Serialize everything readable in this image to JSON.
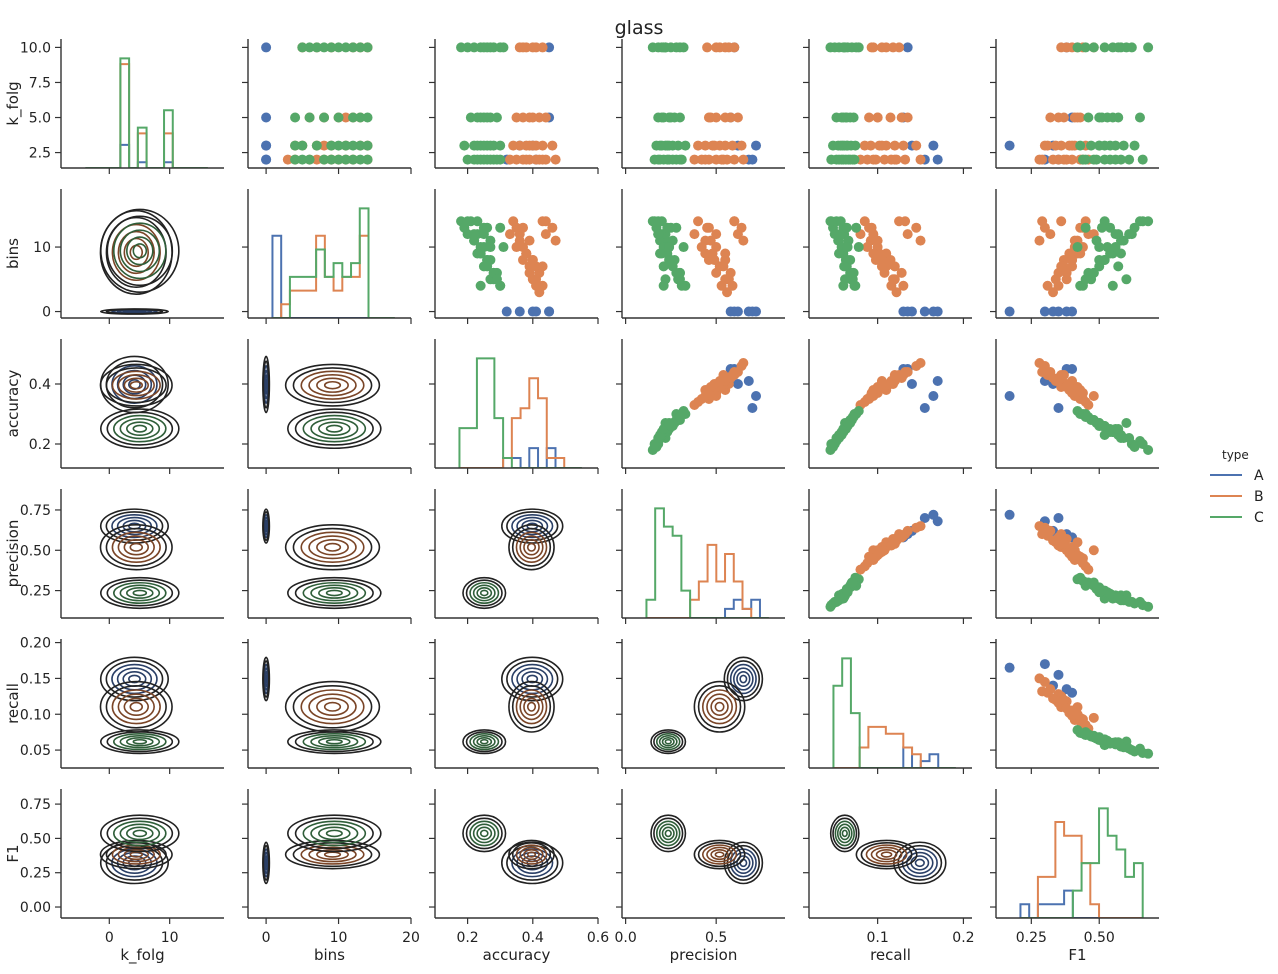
{
  "chart_data": {
    "type": "pairplot",
    "title": "glass",
    "variables": [
      "k_folg",
      "bins",
      "accuracy",
      "precision",
      "recall",
      "F1"
    ],
    "axis_labels": [
      "k_folg",
      "bins",
      "accuracy",
      "precision",
      "recall",
      "F1"
    ],
    "legend": {
      "title": "type",
      "position": "right",
      "entries": [
        {
          "label": "A",
          "color": "#4c72b0"
        },
        {
          "label": "B",
          "color": "#dd8452"
        },
        {
          "label": "C",
          "color": "#55a868"
        }
      ]
    },
    "axes": [
      {
        "name": "k_folg",
        "xlim": [
          -8,
          19
        ],
        "ylim": [
          1.4,
          10.6
        ],
        "xticks": [
          0,
          10
        ],
        "xtick_labels": [
          "0",
          "10"
        ],
        "yticks": [
          2.5,
          5.0,
          7.5,
          10.0
        ],
        "ytick_labels": [
          "2.5",
          "5.0",
          "7.5",
          "10.0"
        ]
      },
      {
        "name": "bins",
        "xlim": [
          -2.5,
          20
        ],
        "ylim": [
          -1.0,
          19.0
        ],
        "xticks": [
          0,
          10,
          20
        ],
        "xtick_labels": [
          "0",
          "10",
          "20"
        ],
        "yticks": [
          0,
          10
        ],
        "ytick_labels": [
          "0",
          "10"
        ]
      },
      {
        "name": "accuracy",
        "xlim": [
          0.1,
          0.6
        ],
        "ylim": [
          0.12,
          0.55
        ],
        "xticks": [
          0.2,
          0.4,
          0.6
        ],
        "xtick_labels": [
          "0.2",
          "0.4",
          "0.6"
        ],
        "yticks": [
          0.2,
          0.4
        ],
        "ytick_labels": [
          "0.2",
          "0.4"
        ]
      },
      {
        "name": "precision",
        "xlim": [
          -0.02,
          0.88
        ],
        "ylim": [
          0.08,
          0.88
        ],
        "xticks": [
          0.0,
          0.5
        ],
        "xtick_labels": [
          "0.0",
          "0.5"
        ],
        "yticks": [
          0.25,
          0.5,
          0.75
        ],
        "ytick_labels": [
          "0.25",
          "0.50",
          "0.75"
        ]
      },
      {
        "name": "recall",
        "xlim": [
          0.02,
          0.21
        ],
        "ylim": [
          0.025,
          0.205
        ],
        "xticks": [
          0.1,
          0.2
        ],
        "xtick_labels": [
          "0.1",
          "0.2"
        ],
        "yticks": [
          0.05,
          0.1,
          0.15,
          0.2
        ],
        "ytick_labels": [
          "0.05",
          "0.10",
          "0.15",
          "0.20"
        ]
      },
      {
        "name": "F1",
        "xlim": [
          0.12,
          0.72
        ],
        "ylim": [
          -0.08,
          0.86
        ],
        "xticks": [
          0.25,
          0.5
        ],
        "xtick_labels": [
          "0.25",
          "0.50"
        ],
        "yticks": [
          0.0,
          0.25,
          0.5,
          0.75
        ],
        "ytick_labels": [
          "0.00",
          "0.25",
          "0.50",
          "0.75"
        ]
      }
    ],
    "diagonal": "step histogram per type",
    "upper_triangle": "scatter",
    "lower_triangle": "kde contours",
    "series": [
      {
        "name": "A",
        "points": [
          [
            10,
            0,
            0.45,
            0.6,
            0.135,
            0.38
          ],
          [
            5,
            0,
            0.45,
            0.58,
            0.13,
            0.4
          ],
          [
            3,
            0,
            0.36,
            0.72,
            0.165,
            0.17
          ],
          [
            2,
            0,
            0.32,
            0.7,
            0.155,
            0.35
          ],
          [
            2,
            0,
            0.41,
            0.68,
            0.17,
            0.3
          ],
          [
            3,
            0,
            0.4,
            0.62,
            0.14,
            0.33
          ]
        ]
      },
      {
        "name": "B",
        "points": [
          [
            10,
            12,
            0.36,
            0.5,
            0.095,
            0.48
          ],
          [
            10,
            9,
            0.38,
            0.55,
            0.11,
            0.42
          ],
          [
            10,
            7,
            0.41,
            0.52,
            0.105,
            0.4
          ],
          [
            10,
            14,
            0.43,
            0.6,
            0.125,
            0.36
          ],
          [
            10,
            5,
            0.4,
            0.57,
            0.118,
            0.38
          ],
          [
            5,
            13,
            0.35,
            0.46,
            0.09,
            0.43
          ],
          [
            5,
            10,
            0.37,
            0.5,
            0.1,
            0.41
          ],
          [
            5,
            8,
            0.4,
            0.55,
            0.115,
            0.37
          ],
          [
            5,
            6,
            0.42,
            0.58,
            0.128,
            0.35
          ],
          [
            5,
            12,
            0.44,
            0.62,
            0.135,
            0.32
          ],
          [
            3,
            14,
            0.34,
            0.4,
            0.085,
            0.45
          ],
          [
            3,
            11,
            0.36,
            0.44,
            0.092,
            0.41
          ],
          [
            3,
            9,
            0.38,
            0.48,
            0.102,
            0.39
          ],
          [
            3,
            7,
            0.39,
            0.52,
            0.11,
            0.36
          ],
          [
            3,
            5,
            0.41,
            0.55,
            0.12,
            0.34
          ],
          [
            3,
            4,
            0.43,
            0.59,
            0.13,
            0.31
          ],
          [
            3,
            13,
            0.46,
            0.64,
            0.145,
            0.3
          ],
          [
            2,
            12,
            0.33,
            0.38,
            0.08,
            0.46
          ],
          [
            2,
            10,
            0.35,
            0.42,
            0.088,
            0.44
          ],
          [
            2,
            8,
            0.37,
            0.46,
            0.098,
            0.4
          ],
          [
            2,
            6,
            0.39,
            0.5,
            0.108,
            0.38
          ],
          [
            2,
            4,
            0.41,
            0.53,
            0.116,
            0.35
          ],
          [
            2,
            3,
            0.42,
            0.56,
            0.122,
            0.33
          ],
          [
            2,
            14,
            0.44,
            0.6,
            0.132,
            0.29
          ],
          [
            2,
            11,
            0.47,
            0.65,
            0.15,
            0.28
          ],
          [
            2,
            9,
            0.38,
            0.44,
            0.095,
            0.43
          ],
          [
            3,
            8,
            0.4,
            0.49,
            0.105,
            0.4
          ],
          [
            5,
            11,
            0.39,
            0.47,
            0.1,
            0.42
          ],
          [
            10,
            13,
            0.37,
            0.45,
            0.093,
            0.44
          ],
          [
            2,
            7,
            0.43,
            0.54,
            0.12,
            0.37
          ]
        ]
      },
      {
        "name": "C",
        "points": [
          [
            10,
            14,
            0.18,
            0.15,
            0.045,
            0.68
          ],
          [
            10,
            12,
            0.2,
            0.18,
            0.05,
            0.62
          ],
          [
            10,
            11,
            0.22,
            0.22,
            0.055,
            0.58
          ],
          [
            10,
            9,
            0.24,
            0.2,
            0.06,
            0.55
          ],
          [
            10,
            8,
            0.26,
            0.25,
            0.065,
            0.52
          ],
          [
            10,
            6,
            0.28,
            0.3,
            0.07,
            0.48
          ],
          [
            10,
            13,
            0.3,
            0.28,
            0.075,
            0.45
          ],
          [
            10,
            10,
            0.31,
            0.32,
            0.078,
            0.42
          ],
          [
            10,
            5,
            0.27,
            0.22,
            0.062,
            0.6
          ],
          [
            5,
            14,
            0.21,
            0.18,
            0.052,
            0.65
          ],
          [
            5,
            12,
            0.23,
            0.2,
            0.058,
            0.57
          ],
          [
            5,
            10,
            0.25,
            0.24,
            0.063,
            0.53
          ],
          [
            5,
            8,
            0.27,
            0.27,
            0.068,
            0.5
          ],
          [
            5,
            6,
            0.29,
            0.3,
            0.072,
            0.46
          ],
          [
            5,
            4,
            0.24,
            0.21,
            0.06,
            0.55
          ],
          [
            3,
            13,
            0.19,
            0.17,
            0.048,
            0.63
          ],
          [
            3,
            11,
            0.22,
            0.19,
            0.054,
            0.59
          ],
          [
            3,
            9,
            0.24,
            0.23,
            0.059,
            0.54
          ],
          [
            3,
            7,
            0.26,
            0.26,
            0.064,
            0.5
          ],
          [
            3,
            5,
            0.28,
            0.29,
            0.069,
            0.47
          ],
          [
            3,
            4,
            0.3,
            0.33,
            0.074,
            0.43
          ],
          [
            3,
            12,
            0.25,
            0.22,
            0.061,
            0.56
          ],
          [
            3,
            14,
            0.23,
            0.2,
            0.057,
            0.52
          ],
          [
            2,
            14,
            0.2,
            0.16,
            0.046,
            0.66
          ],
          [
            2,
            12,
            0.22,
            0.18,
            0.052,
            0.61
          ],
          [
            2,
            10,
            0.24,
            0.21,
            0.058,
            0.56
          ],
          [
            2,
            8,
            0.26,
            0.24,
            0.063,
            0.52
          ],
          [
            2,
            6,
            0.28,
            0.28,
            0.068,
            0.48
          ],
          [
            2,
            4,
            0.3,
            0.31,
            0.073,
            0.44
          ],
          [
            2,
            13,
            0.25,
            0.23,
            0.06,
            0.54
          ],
          [
            2,
            11,
            0.27,
            0.26,
            0.066,
            0.49
          ],
          [
            2,
            9,
            0.23,
            0.19,
            0.055,
            0.58
          ],
          [
            10,
            7,
            0.25,
            0.21,
            0.061,
            0.57
          ],
          [
            5,
            13,
            0.26,
            0.25,
            0.064,
            0.51
          ],
          [
            3,
            10,
            0.27,
            0.24,
            0.065,
            0.5
          ],
          [
            2,
            5,
            0.29,
            0.3,
            0.071,
            0.45
          ]
        ]
      }
    ]
  }
}
